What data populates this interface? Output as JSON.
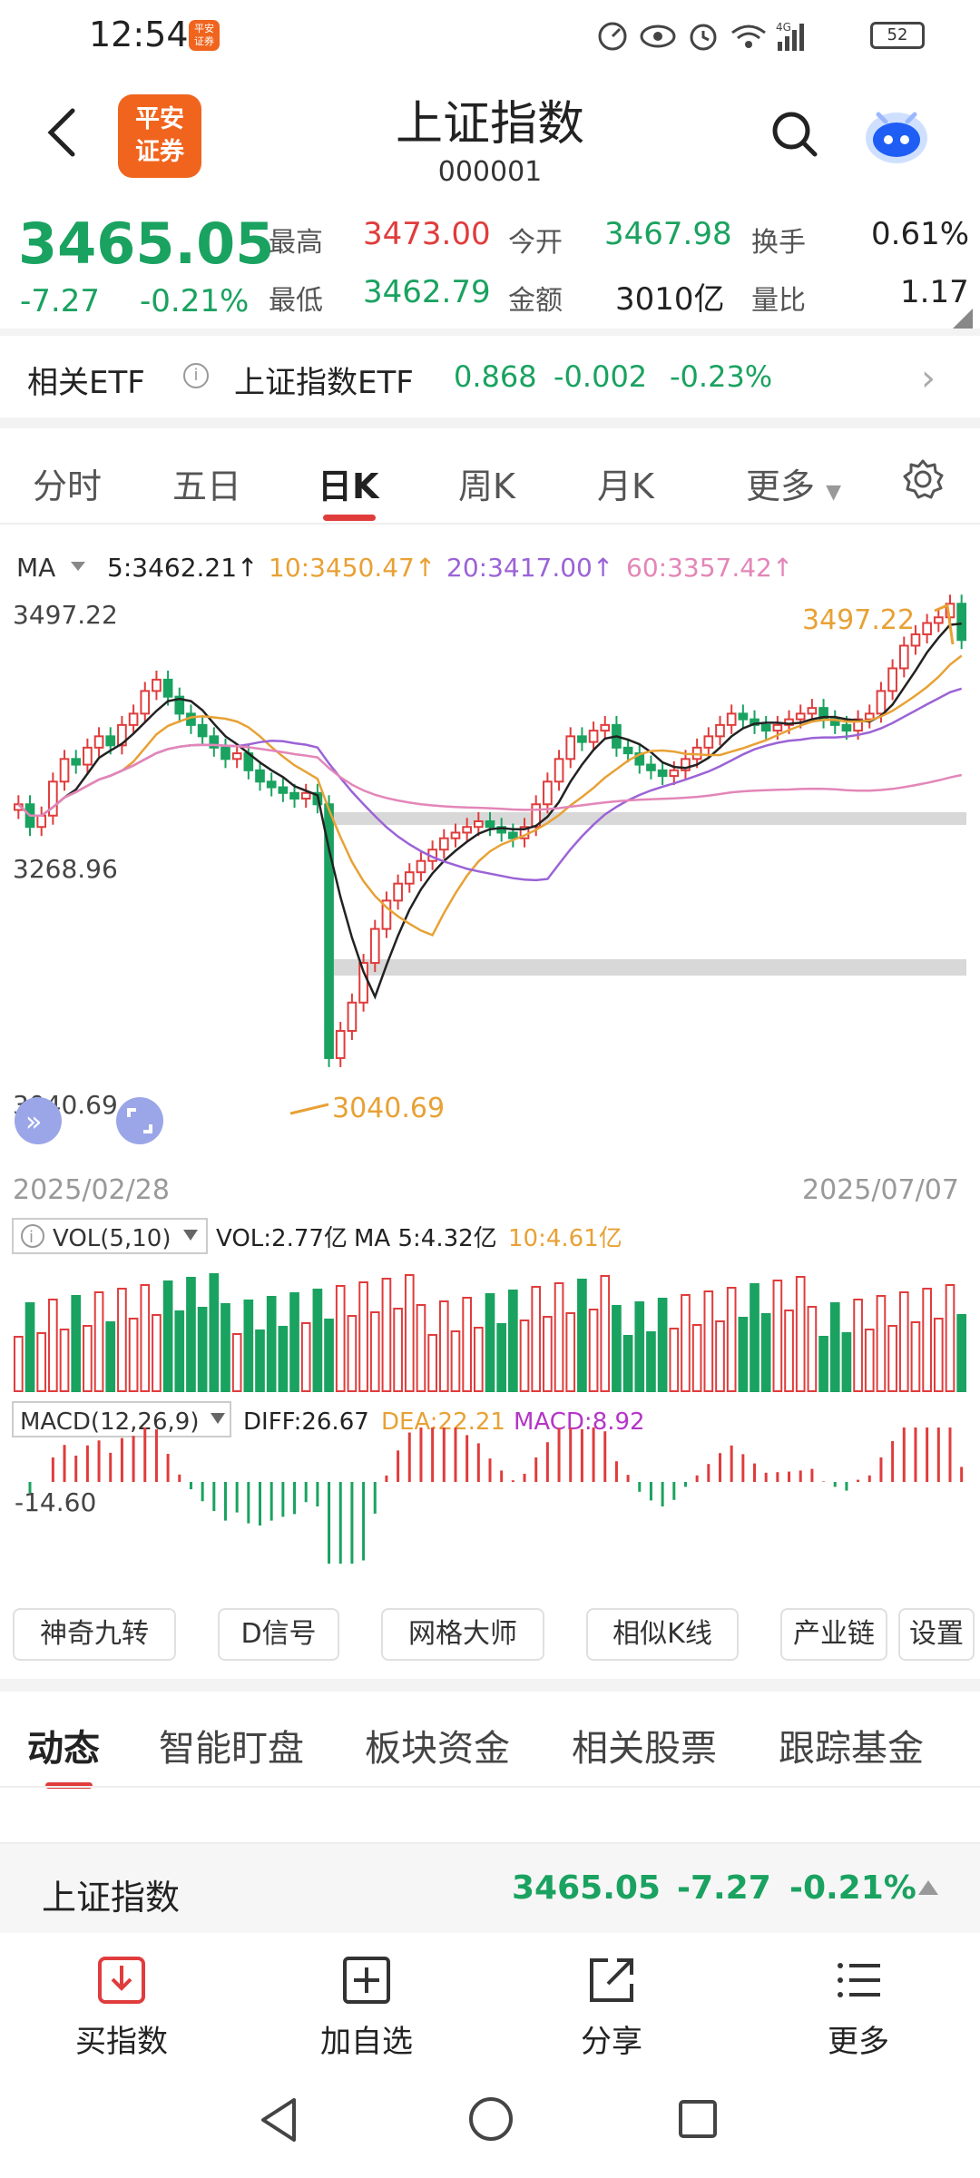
{
  "status_bar": {
    "time": "12:54",
    "app_icon_text": "平安\n证券",
    "battery": "52",
    "network": "4G"
  },
  "header": {
    "title": "上证指数",
    "code": "000001",
    "logo_text": "平安证券"
  },
  "quote": {
    "price": "3465.05",
    "change": "-7.27",
    "change_pct": "-0.21%",
    "high_label": "最高",
    "high": "3473.00",
    "low_label": "最低",
    "low": "3462.79",
    "open_label": "今开",
    "open": "3467.98",
    "amount_label": "金额",
    "amount": "3010亿",
    "turnover_label": "换手",
    "turnover": "0.61%",
    "vol_ratio_label": "量比",
    "vol_ratio": "1.17"
  },
  "etf": {
    "label": "相关ETF",
    "name": "上证指数ETF",
    "price": "0.868",
    "change": "-0.002",
    "change_pct": "-0.23%"
  },
  "ktabs": [
    "分时",
    "五日",
    "日K",
    "周K",
    "月K",
    "更多"
  ],
  "ma_legend": {
    "label": "MA",
    "ma5": "5:3462.21↑",
    "ma10": "10:3450.47↑",
    "ma20": "20:3417.00↑",
    "ma60": "60:3357.42↑"
  },
  "chart_data": {
    "type": "candlestick",
    "y_top_label": "3497.22",
    "y_mid_label": "3268.96",
    "y_bottom_label": "3040.69",
    "max_marker": "3497.22",
    "min_marker": "3040.69",
    "x_start": "2025/02/28",
    "x_end": "2025/07/07",
    "close_series": [
      3320,
      3300,
      3310,
      3340,
      3360,
      3355,
      3370,
      3380,
      3372,
      3390,
      3400,
      3420,
      3430,
      3415,
      3400,
      3390,
      3380,
      3370,
      3360,
      3365,
      3350,
      3340,
      3335,
      3330,
      3325,
      3330,
      3320,
      3096,
      3120,
      3145,
      3180,
      3210,
      3235,
      3250,
      3260,
      3270,
      3280,
      3290,
      3295,
      3300,
      3305,
      3300,
      3295,
      3290,
      3300,
      3320,
      3340,
      3360,
      3380,
      3375,
      3385,
      3390,
      3370,
      3365,
      3355,
      3350,
      3345,
      3350,
      3360,
      3370,
      3380,
      3390,
      3400,
      3395,
      3390,
      3385,
      3390,
      3395,
      3400,
      3405,
      3395,
      3390,
      3385,
      3395,
      3400,
      3420,
      3440,
      3460,
      3470,
      3480,
      3485,
      3497,
      3465
    ],
    "volume": {
      "label": "VOL(5,10)",
      "vol": "VOL:2.77亿",
      "ma5": "MA 5:4.32亿",
      "ma10": "10:4.61亿"
    },
    "macd": {
      "label": "MACD(12,26,9)",
      "diff": "DIFF:26.67",
      "dea": "DEA:22.21",
      "macd": "MACD:8.92",
      "low_label": "-14.60"
    }
  },
  "tool_buttons": [
    "神奇九转",
    "D信号",
    "网格大师",
    "相似K线",
    "产业链",
    "设置"
  ],
  "news_tabs": [
    "动态",
    "智能盯盘",
    "板块资金",
    "相关股票",
    "跟踪基金"
  ],
  "strip": {
    "name": "上证指数",
    "price": "3465.05",
    "change": "-7.27",
    "change_pct": "-0.21%"
  },
  "actions": [
    "买指数",
    "加自选",
    "分享",
    "更多"
  ],
  "colors": {
    "up": "#e03c3c",
    "down": "#1aa260",
    "accent": "#f0641e"
  }
}
